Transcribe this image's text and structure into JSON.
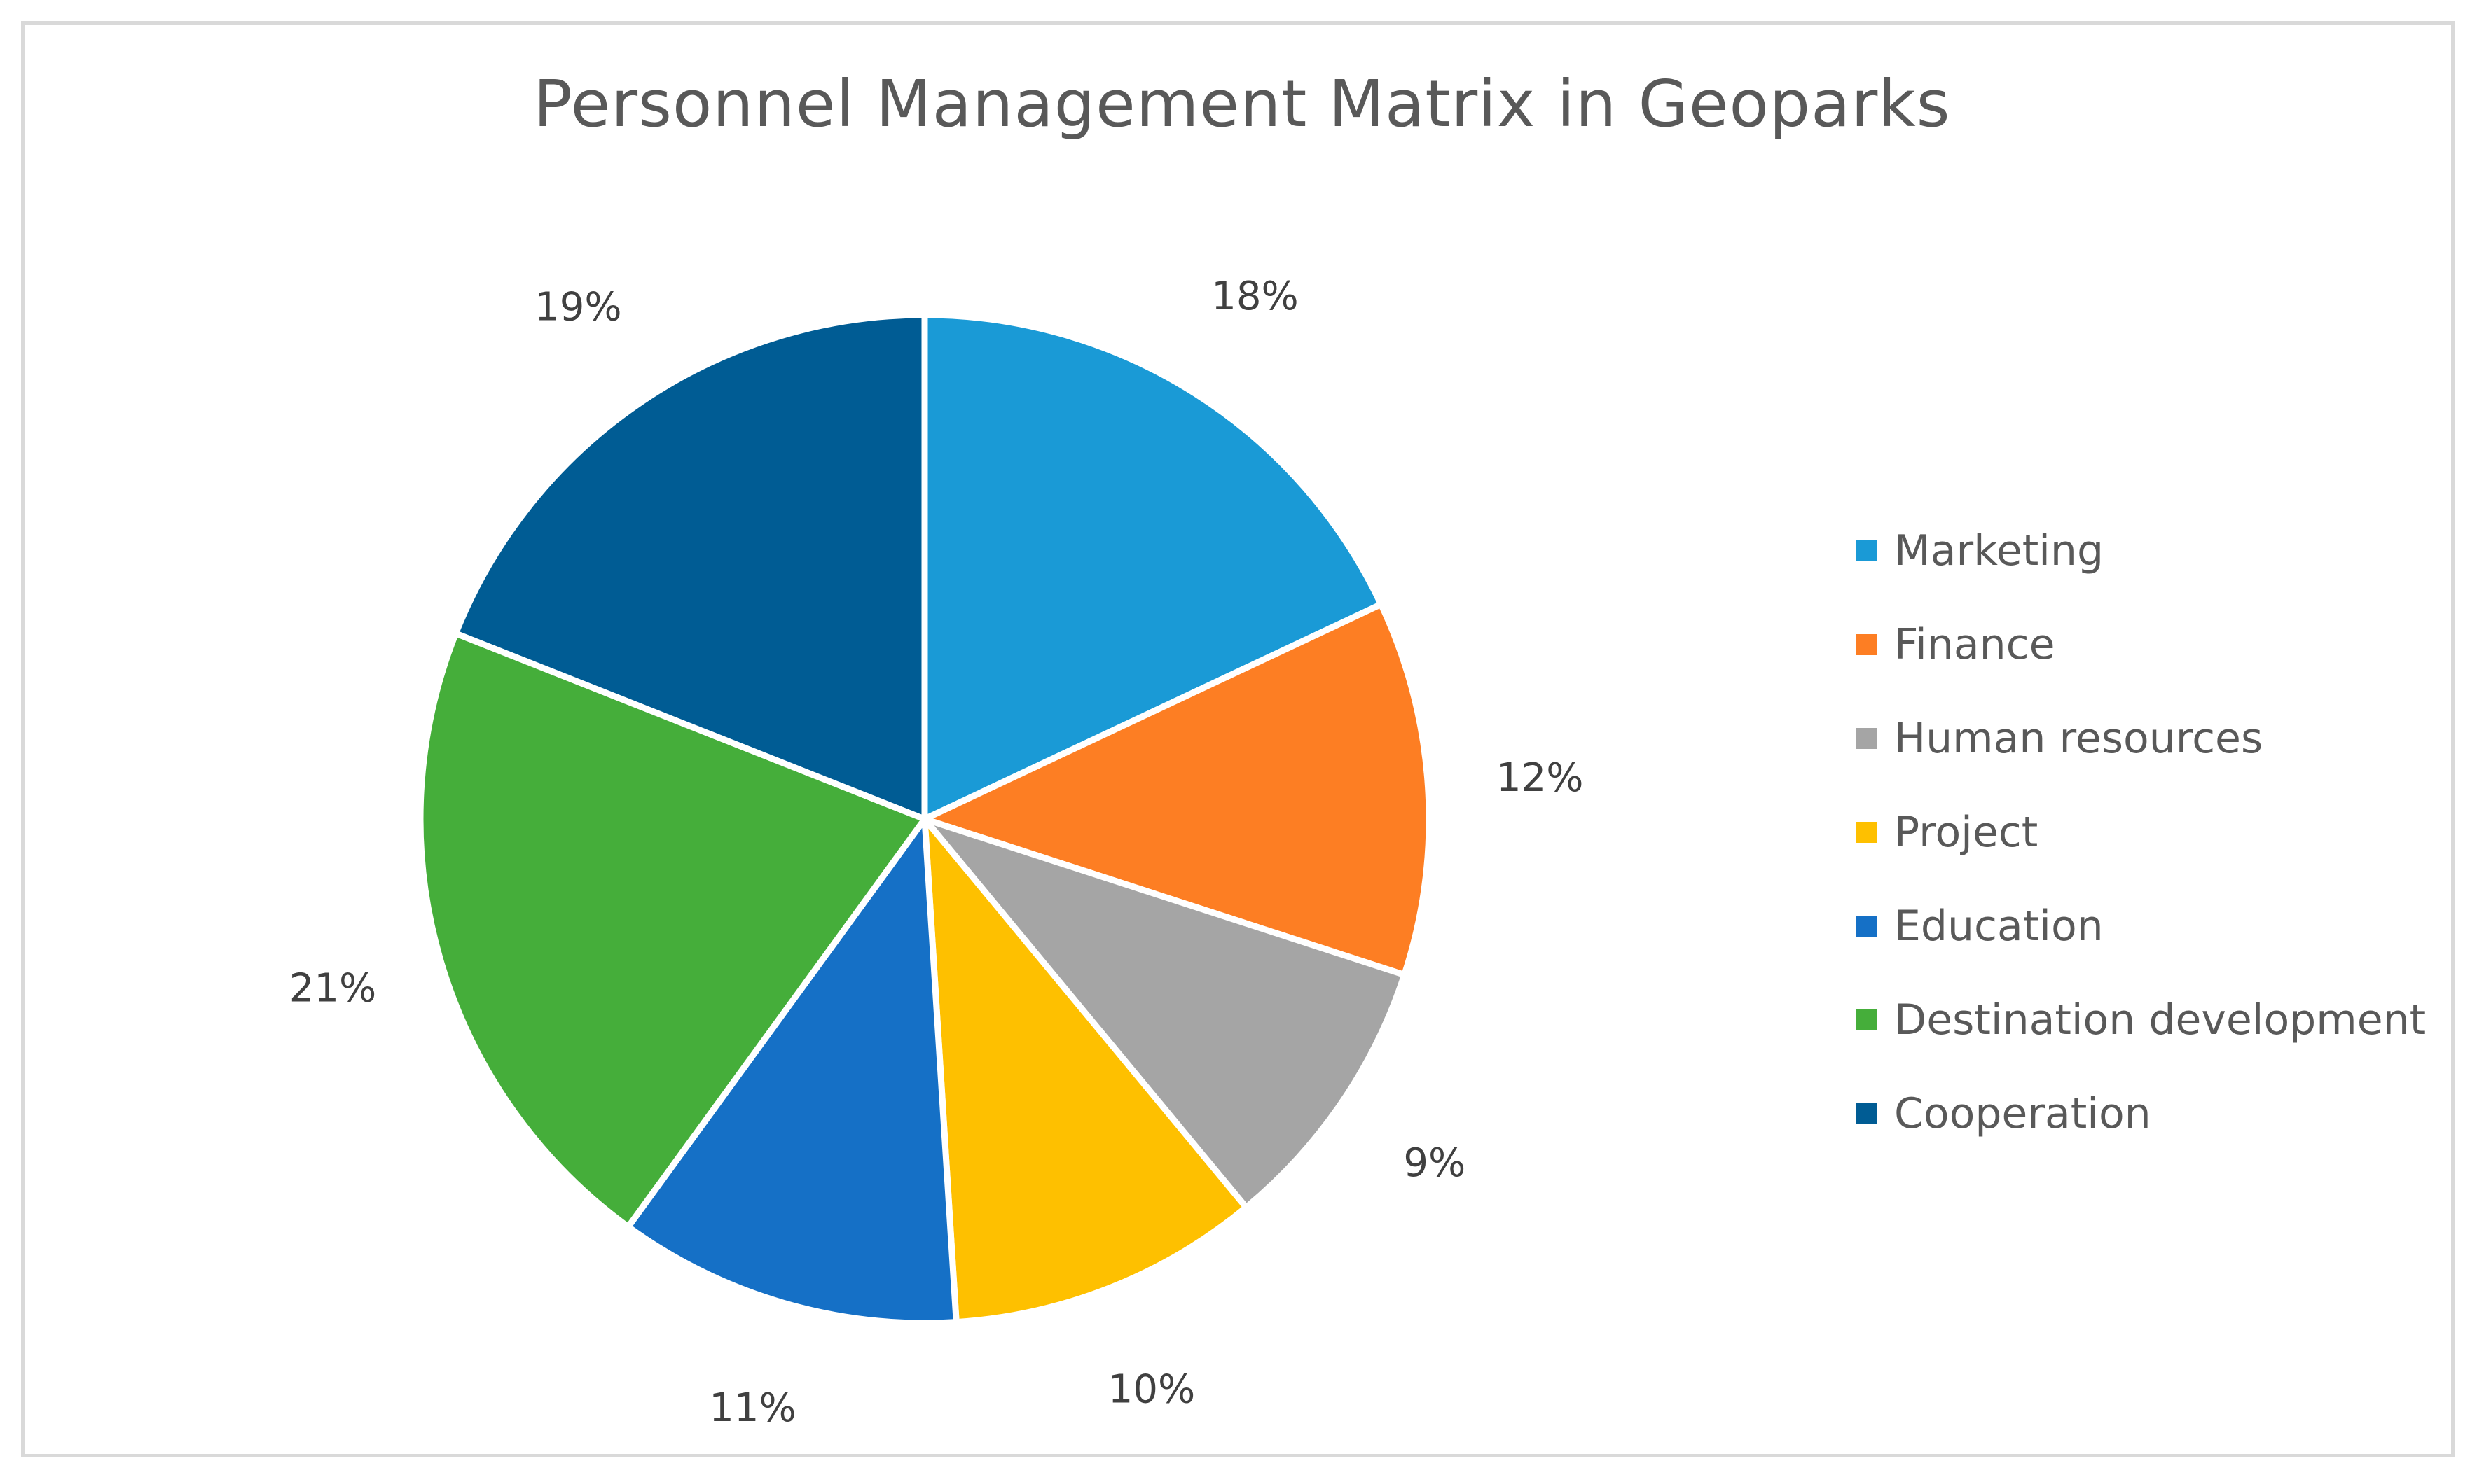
{
  "chart_data": {
    "type": "pie",
    "title": "Personnel  Management Matrix in Geoparks",
    "legend_position": "right",
    "slices": [
      {
        "name": "Marketing",
        "value": 18,
        "label": "18%",
        "color": "#1a9ad6"
      },
      {
        "name": "Finance",
        "value": 12,
        "label": "12%",
        "color": "#fd7e23"
      },
      {
        "name": "Human resources",
        "value": 9,
        "label": "9%",
        "color": "#a5a5a5"
      },
      {
        "name": "Project",
        "value": 10,
        "label": "10%",
        "color": "#fec000"
      },
      {
        "name": "Education",
        "value": 11,
        "label": "11%",
        "color": "#1570c6"
      },
      {
        "name": "Destination development",
        "value": 21,
        "label": "21%",
        "color": "#45ae3a"
      },
      {
        "name": "Cooperation",
        "value": 19,
        "label": "19%",
        "color": "#005c94"
      }
    ]
  }
}
